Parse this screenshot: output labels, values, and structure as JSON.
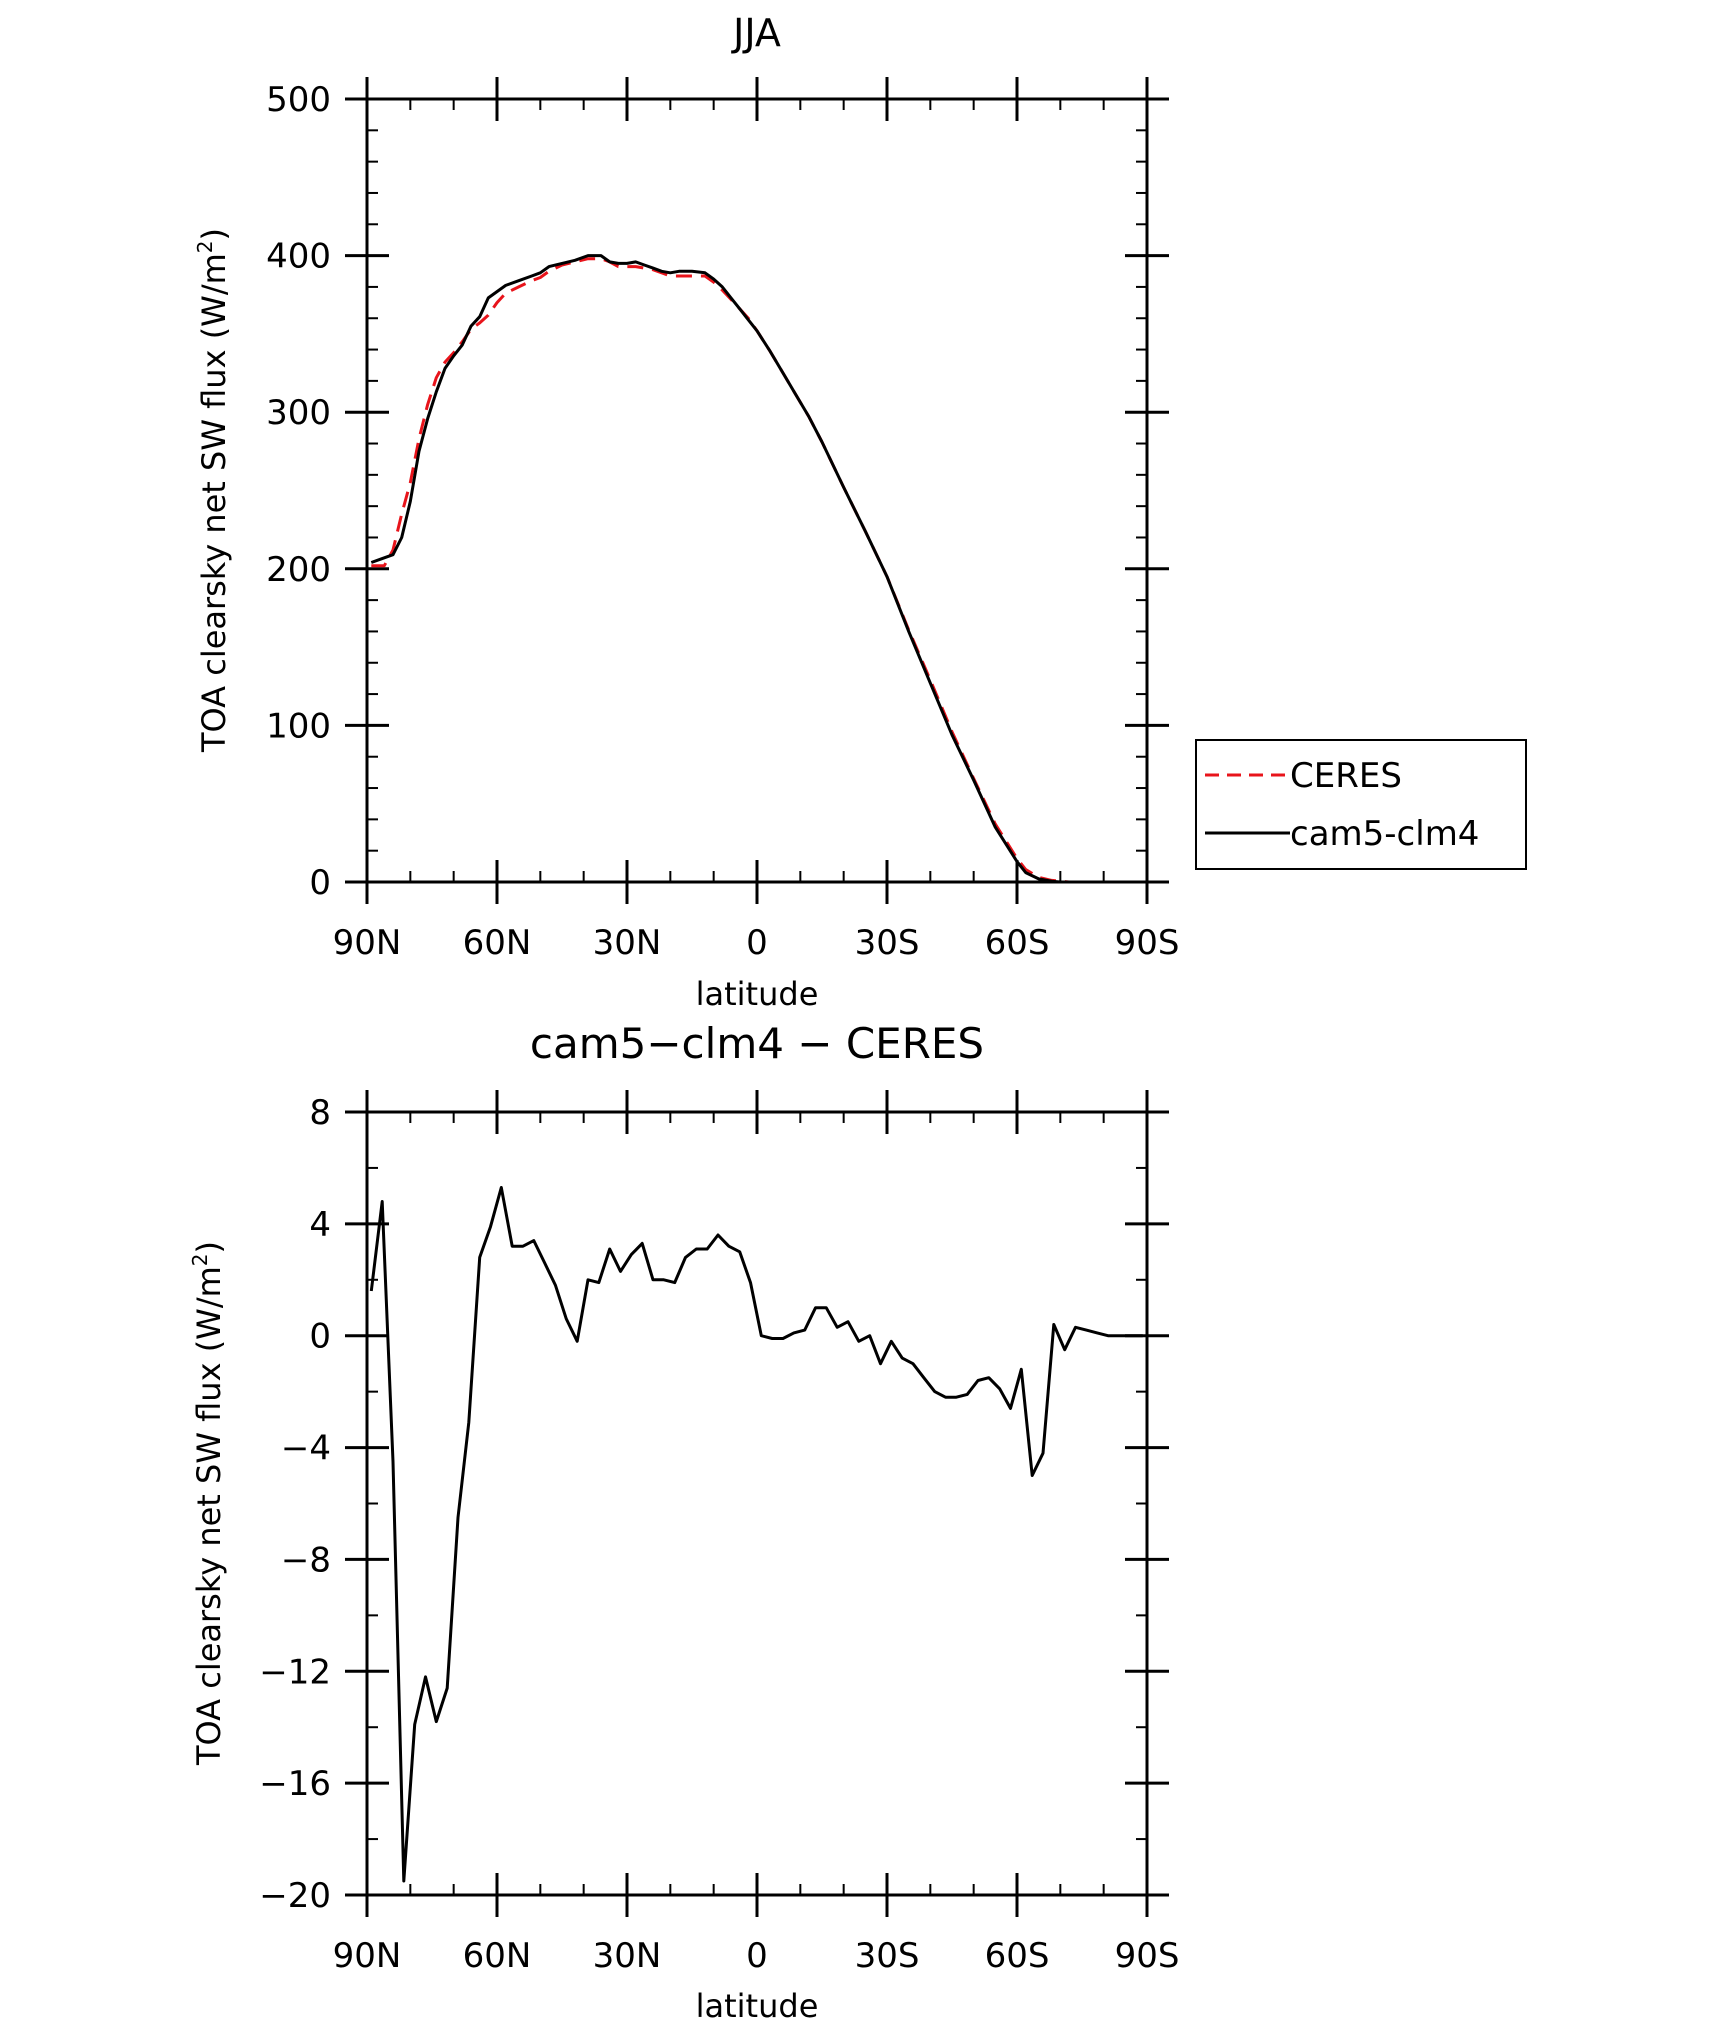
{
  "chart_data": [
    {
      "type": "line",
      "title": "JJA",
      "xlabel": "latitude",
      "ylabel_main": "TOA clearsky net SW flux (W/m",
      "ylabel_sup": "2",
      "ylabel_close": ")",
      "xlim": [
        -90,
        90
      ],
      "ylim": [
        0,
        500
      ],
      "x_ticks": [
        {
          "value": -90,
          "label": "90N"
        },
        {
          "value": -60,
          "label": "60N"
        },
        {
          "value": -30,
          "label": "30N"
        },
        {
          "value": 0,
          "label": "0"
        },
        {
          "value": 30,
          "label": "30S"
        },
        {
          "value": 60,
          "label": "60S"
        },
        {
          "value": 90,
          "label": "90S"
        }
      ],
      "y_ticks": [
        {
          "value": 0,
          "label": "0"
        },
        {
          "value": 100,
          "label": "100"
        },
        {
          "value": 200,
          "label": "200"
        },
        {
          "value": 300,
          "label": "300"
        },
        {
          "value": 400,
          "label": "400"
        },
        {
          "value": 500,
          "label": "500"
        }
      ],
      "legend_position": "right",
      "series": [
        {
          "name": "CERES",
          "color": "#e8141b",
          "dash": true,
          "x": [
            -89,
            -86,
            -84,
            -82,
            -80,
            -78,
            -76,
            -74,
            -72,
            -70,
            -68,
            -66,
            -64,
            -62,
            -60,
            -58,
            -55,
            -52,
            -50,
            -48,
            -45,
            -42,
            -39,
            -36,
            -34,
            -32,
            -30,
            -28,
            -26,
            -24,
            -22,
            -20,
            -18,
            -15,
            -12,
            -10,
            -8,
            -6,
            -4,
            -2,
            0,
            3,
            6,
            9,
            12,
            15,
            20,
            25,
            30,
            35,
            40,
            45,
            50,
            55,
            60,
            62,
            65,
            68,
            70,
            72,
            74,
            76,
            78,
            80,
            85,
            90
          ],
          "y": [
            202,
            202,
            212,
            235,
            255,
            283,
            305,
            322,
            332,
            338,
            345,
            353,
            357,
            362,
            370,
            376,
            380,
            384,
            386,
            390,
            394,
            396,
            398,
            398,
            396,
            393,
            393,
            393,
            392,
            391,
            389,
            387,
            387,
            387,
            387,
            383,
            378,
            372,
            366,
            360,
            352,
            339,
            325,
            311,
            297,
            281,
            252,
            224,
            195,
            161,
            129,
            96,
            66,
            37,
            15,
            8,
            3,
            1,
            0.5,
            0,
            0,
            0,
            0,
            0,
            0,
            0
          ]
        },
        {
          "name": "cam5-clm4",
          "color": "#000000",
          "dash": false,
          "x": [
            -89,
            -86,
            -84,
            -82,
            -80,
            -78,
            -76,
            -74,
            -72,
            -70,
            -68,
            -66,
            -64,
            -62,
            -60,
            -58,
            -55,
            -52,
            -50,
            -48,
            -45,
            -42,
            -39,
            -36,
            -34,
            -32,
            -30,
            -28,
            -26,
            -24,
            -22,
            -20,
            -18,
            -15,
            -12,
            -10,
            -8,
            -6,
            -4,
            -2,
            0,
            3,
            6,
            9,
            12,
            15,
            20,
            25,
            30,
            35,
            40,
            45,
            50,
            55,
            60,
            62,
            65,
            68,
            70,
            72,
            74,
            76,
            78,
            80,
            85,
            90
          ],
          "y": [
            204,
            207,
            209,
            220,
            243,
            275,
            296,
            313,
            328,
            336,
            343,
            355,
            361,
            373,
            377,
            381,
            384,
            387,
            389,
            393,
            395,
            397,
            400,
            400,
            396,
            395,
            395,
            396,
            394,
            392,
            390,
            389,
            390,
            390,
            389,
            385,
            380,
            373,
            366,
            359,
            352,
            339,
            325,
            311,
            297,
            281,
            252,
            224,
            195,
            160,
            127,
            94,
            65,
            35,
            13,
            6,
            2,
            0.5,
            0,
            0,
            0,
            0,
            0,
            0,
            0,
            0
          ]
        }
      ]
    },
    {
      "type": "line",
      "title": "cam5−clm4 − CERES",
      "xlabel": "latitude",
      "ylabel_main": "TOA clearsky net SW flux (W/m",
      "ylabel_sup": "2",
      "ylabel_close": ")",
      "xlim": [
        -90,
        90
      ],
      "ylim": [
        -20,
        8
      ],
      "x_ticks": [
        {
          "value": -90,
          "label": "90N"
        },
        {
          "value": -60,
          "label": "60N"
        },
        {
          "value": -30,
          "label": "30N"
        },
        {
          "value": 0,
          "label": "0"
        },
        {
          "value": 30,
          "label": "30S"
        },
        {
          "value": 60,
          "label": "60S"
        },
        {
          "value": 90,
          "label": "90S"
        }
      ],
      "y_ticks": [
        {
          "value": -20,
          "label": "−20"
        },
        {
          "value": -16,
          "label": "−16"
        },
        {
          "value": -12,
          "label": "−12"
        },
        {
          "value": -8,
          "label": "−8"
        },
        {
          "value": -4,
          "label": "−4"
        },
        {
          "value": 0,
          "label": "0"
        },
        {
          "value": 4,
          "label": "4"
        },
        {
          "value": 8,
          "label": "8"
        }
      ],
      "series": [
        {
          "name": "",
          "color": "#000000",
          "dash": false,
          "x": [
            -89,
            -86.5,
            -84,
            -81.5,
            -79,
            -76.5,
            -74,
            -71.5,
            -69,
            -66.5,
            -64,
            -61.5,
            -59,
            -56.5,
            -54,
            -51.5,
            -49,
            -46.5,
            -44,
            -41.5,
            -39,
            -36.5,
            -34,
            -31.5,
            -29,
            -26.5,
            -24,
            -21.5,
            -19,
            -16.5,
            -14,
            -11.5,
            -9,
            -6.5,
            -4,
            -1.5,
            1,
            3.5,
            6,
            8.5,
            11,
            13.5,
            16,
            18.5,
            21,
            23.5,
            26,
            28.5,
            31,
            33.5,
            36,
            38.5,
            41,
            43.5,
            46,
            48.5,
            51,
            53.5,
            56,
            58.5,
            61,
            63.5,
            66,
            68.5,
            71,
            73.5,
            76,
            78.5,
            81,
            83.5,
            86,
            89
          ],
          "y": [
            1.6,
            4.8,
            -4.5,
            -19.5,
            -13.9,
            -12.2,
            -13.8,
            -12.6,
            -6.5,
            -3.1,
            2.8,
            3.9,
            5.3,
            3.2,
            3.2,
            3.4,
            2.6,
            1.8,
            0.6,
            -0.2,
            2.0,
            1.9,
            3.1,
            2.3,
            2.9,
            3.3,
            2.0,
            2.0,
            1.9,
            2.8,
            3.1,
            3.1,
            3.6,
            3.2,
            3.0,
            1.9,
            0.0,
            -0.1,
            -0.1,
            0.1,
            0.2,
            1.0,
            1.0,
            0.3,
            0.5,
            -0.2,
            0.0,
            -1.0,
            -0.2,
            -0.8,
            -1.0,
            -1.5,
            -2.0,
            -2.2,
            -2.2,
            -2.1,
            -1.6,
            -1.5,
            -1.9,
            -2.6,
            -1.2,
            -5.0,
            -4.2,
            0.4,
            -0.5,
            0.3,
            0.2,
            0.1,
            0.0,
            0.0,
            0.0,
            0.0
          ]
        }
      ]
    }
  ]
}
